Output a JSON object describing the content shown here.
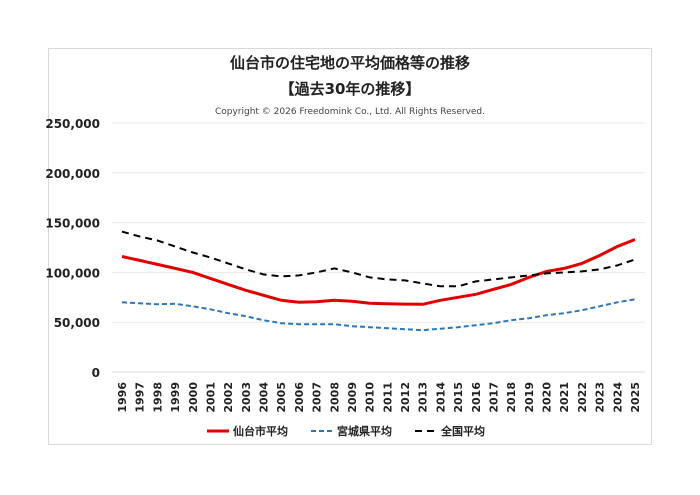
{
  "chart_data": {
    "type": "line",
    "title": "仙台市の住宅地の平均価格等の推移",
    "subtitle": "【過去30年の推移】",
    "copyright": "Copyright © 2026 Freedomink Co., Ltd. All Rights Reserved.",
    "xlabel": "",
    "ylabel": "",
    "ylim": [
      0,
      250000
    ],
    "yticks": [
      "0",
      "50,000",
      "100,000",
      "150,000",
      "200,000",
      "250,000"
    ],
    "grid": true,
    "legend": "bottom",
    "categories": [
      "1996",
      "1997",
      "1998",
      "1999",
      "2000",
      "2001",
      "2002",
      "2003",
      "2004",
      "2005",
      "2006",
      "2007",
      "2008",
      "2009",
      "2010",
      "2011",
      "2012",
      "2013",
      "2014",
      "2015",
      "2016",
      "2017",
      "2018",
      "2019",
      "2020",
      "2021",
      "2022",
      "2023",
      "2024",
      "2025"
    ],
    "series": [
      {
        "name": "仙台市平均",
        "color": "#e00000",
        "style": "solid",
        "values": [
          116000,
          112000,
          108000,
          104000,
          100000,
          94000,
          88000,
          82000,
          77000,
          72000,
          70000,
          70500,
          72000,
          71000,
          69000,
          68500,
          68200,
          68000,
          72000,
          75000,
          78000,
          83000,
          88000,
          95000,
          101000,
          104000,
          109000,
          117000,
          126000,
          133000
        ]
      },
      {
        "name": "宮城県平均",
        "color": "#2e75b6",
        "style": "dashed",
        "values": [
          70000,
          69000,
          68000,
          68500,
          66000,
          63000,
          59000,
          56000,
          52000,
          49000,
          48000,
          48000,
          48000,
          46000,
          45000,
          44000,
          43000,
          42000,
          43500,
          45000,
          47000,
          49000,
          52000,
          54000,
          57000,
          59000,
          62000,
          66000,
          70000,
          73000
        ]
      },
      {
        "name": "全国平均",
        "color": "#000000",
        "style": "dashed",
        "values": [
          141000,
          136000,
          132000,
          126000,
          120000,
          115000,
          109000,
          103000,
          98000,
          96000,
          97000,
          100000,
          104000,
          100000,
          95000,
          93000,
          92000,
          89000,
          86000,
          86000,
          91000,
          93000,
          95000,
          97000,
          99000,
          100000,
          101000,
          103000,
          107000,
          113000
        ]
      }
    ]
  }
}
